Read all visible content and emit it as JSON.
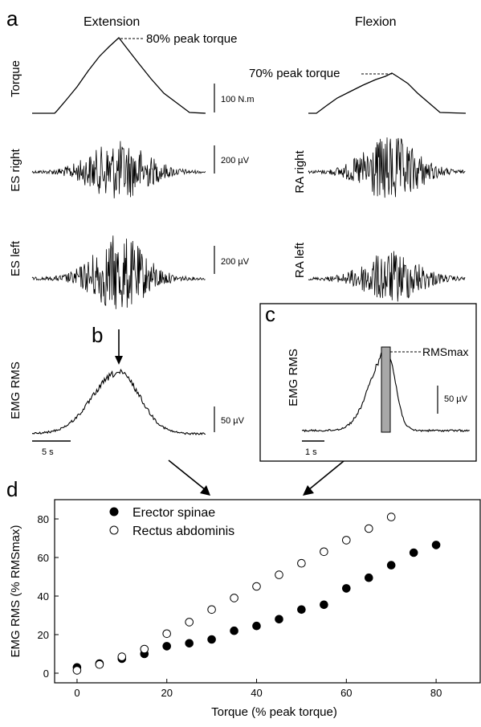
{
  "figure": {
    "panels": {
      "a": "a",
      "b": "b",
      "c": "c",
      "d": "d"
    },
    "columns": {
      "extension": "Extension",
      "flexion": "Flexion"
    },
    "row_labels": {
      "torque": "Torque",
      "es_right": "ES right",
      "es_left": "ES left",
      "emg_rms": "EMG RMS",
      "ra_right": "RA right",
      "ra_left": "RA left",
      "inset_emg_rms": "EMG RMS"
    },
    "annotations": {
      "extension_peak": "80% peak torque",
      "flexion_peak": "70% peak torque",
      "rms_max": "RMSmax"
    },
    "scale_bars": {
      "torque": "100 N.m",
      "es_right": "200 µV",
      "es_left": "200 µV",
      "emg_rms": "50 µV",
      "time_main": "5 s",
      "inset_amplitude": "50 µV",
      "inset_time": "1 s"
    }
  },
  "chart_data": {
    "type": "scatter",
    "xlabel": "Torque (% peak torque)",
    "ylabel": "EMG RMS (% RMSmax)",
    "xlim": [
      -5,
      90
    ],
    "ylim": [
      -5,
      90
    ],
    "x_ticks": [
      "0",
      "20",
      "40",
      "60",
      "80"
    ],
    "y_ticks": [
      "0",
      "20",
      "40",
      "60",
      "80"
    ],
    "legend_position": "top-left",
    "series": [
      {
        "name": "Erector spinae",
        "marker": "filled-circle",
        "color": "#000000",
        "x": [
          0,
          5,
          10,
          15,
          20,
          25,
          30,
          35,
          40,
          45,
          50,
          55,
          60,
          65,
          70,
          75,
          80
        ],
        "y": [
          3,
          5,
          7.5,
          10,
          14,
          15.5,
          17.5,
          22,
          24.5,
          28,
          33,
          35.5,
          44,
          49.5,
          56,
          62.5,
          66.5
        ]
      },
      {
        "name": "Rectus abdominis",
        "marker": "open-circle",
        "color": "#000000",
        "x": [
          0,
          5,
          10,
          15,
          20,
          25,
          30,
          35,
          40,
          45,
          50,
          55,
          60,
          65,
          70
        ],
        "y": [
          1.5,
          4.5,
          8.5,
          12.5,
          20.5,
          26.5,
          33,
          39,
          45,
          51,
          57,
          63,
          69,
          75,
          81
        ]
      }
    ]
  }
}
